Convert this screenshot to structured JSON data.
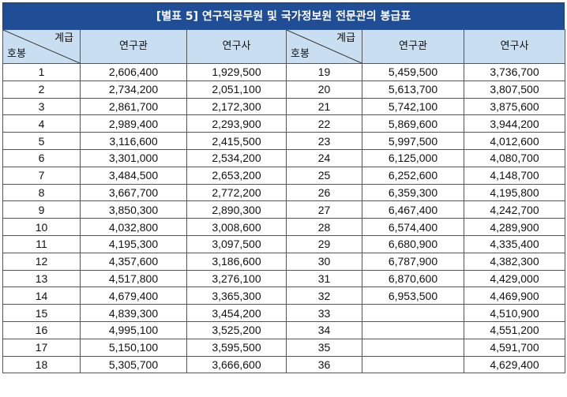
{
  "title": "[별표 5] 연구직공무원 및 국가정보원 전문관의 봉급표",
  "header": {
    "grade_label": "계급",
    "step_label": "호봉",
    "col_researcher_senior": "연구관",
    "col_researcher": "연구사"
  },
  "left_rows": [
    {
      "step": "1",
      "senior": "2,606,400",
      "researcher": "1,929,500"
    },
    {
      "step": "2",
      "senior": "2,734,200",
      "researcher": "2,051,100"
    },
    {
      "step": "3",
      "senior": "2,861,700",
      "researcher": "2,172,300"
    },
    {
      "step": "4",
      "senior": "2,989,400",
      "researcher": "2,293,900"
    },
    {
      "step": "5",
      "senior": "3,116,600",
      "researcher": "2,415,500"
    },
    {
      "step": "6",
      "senior": "3,301,000",
      "researcher": "2,534,200"
    },
    {
      "step": "7",
      "senior": "3,484,500",
      "researcher": "2,653,200"
    },
    {
      "step": "8",
      "senior": "3,667,700",
      "researcher": "2,772,200"
    },
    {
      "step": "9",
      "senior": "3,850,300",
      "researcher": "2,890,300"
    },
    {
      "step": "10",
      "senior": "4,032,800",
      "researcher": "3,008,600"
    },
    {
      "step": "11",
      "senior": "4,195,300",
      "researcher": "3,097,500"
    },
    {
      "step": "12",
      "senior": "4,357,600",
      "researcher": "3,186,600"
    },
    {
      "step": "13",
      "senior": "4,517,800",
      "researcher": "3,276,100"
    },
    {
      "step": "14",
      "senior": "4,679,400",
      "researcher": "3,365,300"
    },
    {
      "step": "15",
      "senior": "4,839,300",
      "researcher": "3,454,200"
    },
    {
      "step": "16",
      "senior": "4,995,100",
      "researcher": "3,525,200"
    },
    {
      "step": "17",
      "senior": "5,150,100",
      "researcher": "3,595,500"
    },
    {
      "step": "18",
      "senior": "5,305,700",
      "researcher": "3,666,600"
    }
  ],
  "right_rows": [
    {
      "step": "19",
      "senior": "5,459,500",
      "researcher": "3,736,700"
    },
    {
      "step": "20",
      "senior": "5,613,700",
      "researcher": "3,807,500"
    },
    {
      "step": "21",
      "senior": "5,742,100",
      "researcher": "3,875,600"
    },
    {
      "step": "22",
      "senior": "5,869,600",
      "researcher": "3,944,200"
    },
    {
      "step": "23",
      "senior": "5,997,500",
      "researcher": "4,012,600"
    },
    {
      "step": "24",
      "senior": "6,125,000",
      "researcher": "4,080,700"
    },
    {
      "step": "25",
      "senior": "6,252,600",
      "researcher": "4,148,700"
    },
    {
      "step": "26",
      "senior": "6,359,300",
      "researcher": "4,195,800"
    },
    {
      "step": "27",
      "senior": "6,467,400",
      "researcher": "4,242,700"
    },
    {
      "step": "28",
      "senior": "6,574,400",
      "researcher": "4,289,900"
    },
    {
      "step": "29",
      "senior": "6,680,900",
      "researcher": "4,335,400"
    },
    {
      "step": "30",
      "senior": "6,787,900",
      "researcher": "4,382,300"
    },
    {
      "step": "31",
      "senior": "6,870,600",
      "researcher": "4,429,000"
    },
    {
      "step": "32",
      "senior": "6,953,500",
      "researcher": "4,469,900"
    },
    {
      "step": "33",
      "senior": "",
      "researcher": "4,510,900"
    },
    {
      "step": "34",
      "senior": "",
      "researcher": "4,551,200"
    },
    {
      "step": "35",
      "senior": "",
      "researcher": "4,591,700"
    },
    {
      "step": "36",
      "senior": "",
      "researcher": "4,629,400"
    }
  ],
  "colors": {
    "title_bg": "#1f4e96",
    "title_text": "#ffffff",
    "header_bg": "#c9def0",
    "border": "#555555"
  }
}
